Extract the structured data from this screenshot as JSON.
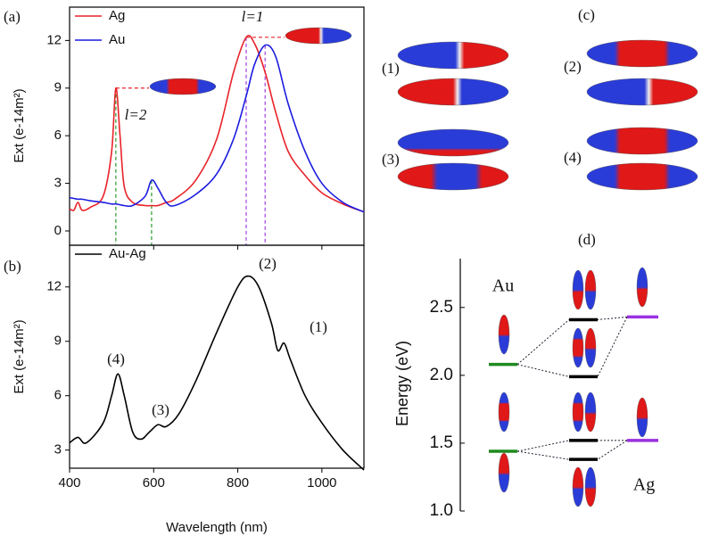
{
  "chart_data": [
    {
      "type": "line",
      "panel": "(a)",
      "ylabel": "Ext (e-14m²)",
      "x": [
        400,
        410,
        420,
        430,
        450,
        480,
        500,
        510,
        520,
        530,
        550,
        580,
        595,
        610,
        630,
        650,
        700,
        750,
        790,
        820,
        840,
        865,
        890,
        920,
        960,
        1000,
        1050,
        1100
      ],
      "series": [
        {
          "name": "Ag",
          "color": "#e8232a",
          "values": [
            1.4,
            1.3,
            1.8,
            1.3,
            1.5,
            2.2,
            5.0,
            9.0,
            6.0,
            2.8,
            1.8,
            1.6,
            1.6,
            1.6,
            1.8,
            2.0,
            3.2,
            5.8,
            10.0,
            12.2,
            11.8,
            10.0,
            7.5,
            5.0,
            3.5,
            2.4,
            1.7,
            1.2
          ]
        },
        {
          "name": "Au",
          "color": "#1c1ce0",
          "values": [
            2.1,
            2.05,
            2.0,
            2.0,
            1.9,
            1.8,
            1.7,
            1.7,
            1.65,
            1.6,
            1.6,
            2.2,
            3.2,
            2.7,
            1.8,
            1.6,
            2.3,
            3.6,
            5.8,
            8.5,
            10.5,
            11.7,
            11.0,
            8.0,
            5.0,
            3.0,
            1.8,
            1.2
          ]
        }
      ],
      "vlines": [
        {
          "x": 510,
          "color": "#2a9a2a"
        },
        {
          "x": 595,
          "color": "#2a9a2a"
        },
        {
          "x": 820,
          "color": "#a040e0"
        },
        {
          "x": 865,
          "color": "#a040e0"
        }
      ],
      "annotations": [
        "l=2",
        "l=1"
      ],
      "xlim": [
        400,
        1100
      ],
      "xticks": [
        400,
        600,
        800,
        1000
      ],
      "ylim": [
        -0.9,
        14.1
      ],
      "yticks": [
        0,
        3,
        6,
        9,
        12
      ],
      "legend": "upper left"
    },
    {
      "type": "line",
      "panel": "(b)",
      "ylabel": "Ext (e-14m²)",
      "xlabel": "Wavelength (nm)",
      "x": [
        400,
        420,
        440,
        480,
        500,
        515,
        530,
        550,
        570,
        590,
        610,
        630,
        660,
        700,
        750,
        800,
        825,
        850,
        880,
        895,
        910,
        925,
        960,
        1000,
        1050,
        1100
      ],
      "series": [
        {
          "name": "Au-Ag",
          "color": "#000000",
          "values": [
            3.4,
            3.7,
            3.4,
            4.5,
            6.0,
            7.2,
            6.0,
            4.0,
            3.6,
            4.0,
            4.4,
            4.3,
            5.0,
            6.8,
            9.5,
            12.0,
            12.6,
            12.0,
            10.0,
            8.5,
            8.9,
            8.0,
            6.0,
            4.5,
            3.0,
            1.9
          ]
        }
      ],
      "annotations": [
        "(4)",
        "(3)",
        "(2)",
        "(1)"
      ],
      "xlim": [
        400,
        1100
      ],
      "xticks": [
        400,
        600,
        800,
        1000
      ],
      "ylim": [
        2.0,
        14.3
      ],
      "yticks": [
        3,
        6,
        9,
        12
      ],
      "legend": "upper left"
    },
    {
      "type": "levels",
      "panel": "(d)",
      "ylabel": "Energy (eV)",
      "series": [
        {
          "name": "Au",
          "color": "#1f8a1f",
          "values": [
            2.08,
            1.44
          ]
        },
        {
          "color": "#000000",
          "values": [
            2.41,
            1.99,
            1.52,
            1.38
          ]
        },
        {
          "name": "Ag",
          "color": "#9a30e0",
          "values": [
            2.43,
            1.52
          ]
        }
      ],
      "ylim": [
        1.0,
        2.86
      ],
      "yticks": [
        {
          "value": 1,
          "label": "1.0"
        },
        1.5,
        {
          "value": 2,
          "label": "2.0"
        },
        2.5
      ]
    }
  ],
  "modes": {
    "panel": "(c)",
    "labels": [
      "(1)",
      "(2)",
      "(3)",
      "(4)"
    ]
  }
}
